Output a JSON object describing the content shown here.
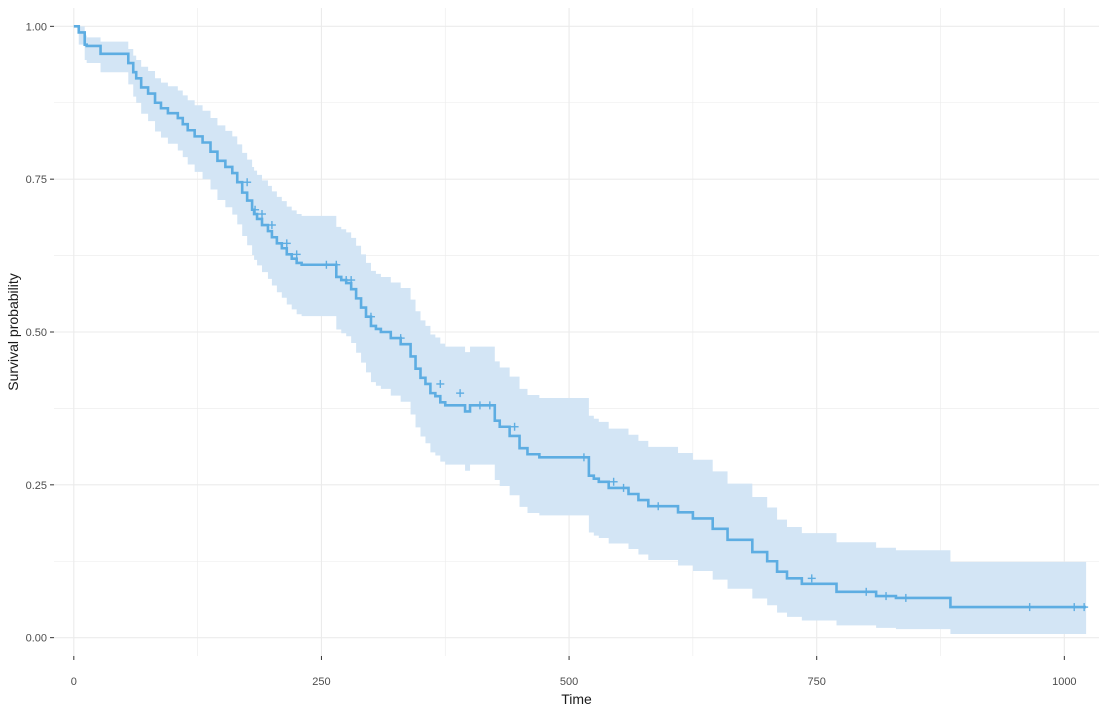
{
  "chart_data": {
    "type": "line",
    "subtype": "kaplan-meier survival curve",
    "title": "",
    "xlabel": "Time",
    "ylabel": "Survival probability",
    "xlim": [
      -20,
      1035
    ],
    "ylim": [
      -0.03,
      1.03
    ],
    "x_ticks": [
      0,
      250,
      500,
      750,
      1000
    ],
    "x_tick_labels": [
      "0",
      "250",
      "500",
      "750",
      "1000"
    ],
    "y_ticks": [
      0,
      0.25,
      0.5,
      0.75,
      1
    ],
    "y_tick_labels": [
      "0.00",
      "0.25",
      "0.50",
      "0.75",
      "1.00"
    ],
    "grid": true,
    "legend": "none",
    "colors": {
      "line": "#5dade2",
      "band": "#d3e5f5",
      "grid": "#ebebeb",
      "background": "#ffffff"
    },
    "series": [
      {
        "x": [
          0,
          5,
          11,
          13,
          27,
          55,
          60,
          63,
          68,
          75,
          82,
          88,
          95,
          105,
          110,
          115,
          122,
          130,
          138,
          145,
          153,
          160,
          165,
          170,
          175,
          180,
          182,
          185,
          190,
          196,
          200,
          205,
          210,
          215,
          220,
          225,
          230,
          235,
          240,
          245,
          252,
          265,
          270,
          275,
          280,
          285,
          290,
          295,
          300,
          305,
          310,
          320,
          330,
          340,
          345,
          350,
          355,
          360,
          365,
          370,
          375,
          395,
          400,
          425,
          430,
          440,
          450,
          458,
          470,
          520,
          525,
          530,
          540,
          560,
          570,
          580,
          610,
          625,
          645,
          660,
          685,
          700,
          710,
          720,
          735,
          770,
          810,
          830,
          885,
          1022
        ],
        "survival": [
          1.0,
          0.99,
          0.97,
          0.968,
          0.955,
          0.94,
          0.925,
          0.915,
          0.9,
          0.89,
          0.875,
          0.866,
          0.858,
          0.85,
          0.84,
          0.83,
          0.82,
          0.81,
          0.795,
          0.78,
          0.77,
          0.76,
          0.745,
          0.728,
          0.715,
          0.7,
          0.693,
          0.685,
          0.675,
          0.665,
          0.655,
          0.645,
          0.637,
          0.627,
          0.62,
          0.613,
          0.61,
          0.61,
          0.61,
          0.61,
          0.61,
          0.59,
          0.585,
          0.58,
          0.57,
          0.555,
          0.54,
          0.525,
          0.51,
          0.505,
          0.5,
          0.49,
          0.48,
          0.46,
          0.44,
          0.425,
          0.415,
          0.4,
          0.395,
          0.385,
          0.38,
          0.37,
          0.38,
          0.355,
          0.345,
          0.33,
          0.31,
          0.3,
          0.295,
          0.265,
          0.26,
          0.255,
          0.245,
          0.235,
          0.225,
          0.215,
          0.205,
          0.195,
          0.178,
          0.16,
          0.14,
          0.125,
          0.108,
          0.097,
          0.088,
          0.075,
          0.068,
          0.065,
          0.05,
          0.05
        ],
        "lower": [
          1.0,
          0.97,
          0.945,
          0.94,
          0.925,
          0.905,
          0.885,
          0.875,
          0.857,
          0.845,
          0.828,
          0.818,
          0.808,
          0.797,
          0.786,
          0.774,
          0.762,
          0.75,
          0.733,
          0.716,
          0.704,
          0.692,
          0.676,
          0.657,
          0.642,
          0.626,
          0.618,
          0.609,
          0.598,
          0.587,
          0.576,
          0.565,
          0.556,
          0.545,
          0.537,
          0.529,
          0.526,
          0.526,
          0.526,
          0.526,
          0.526,
          0.504,
          0.498,
          0.493,
          0.482,
          0.466,
          0.45,
          0.434,
          0.418,
          0.412,
          0.407,
          0.396,
          0.386,
          0.365,
          0.344,
          0.329,
          0.318,
          0.303,
          0.298,
          0.288,
          0.283,
          0.273,
          0.283,
          0.258,
          0.248,
          0.233,
          0.214,
          0.204,
          0.2,
          0.172,
          0.167,
          0.163,
          0.154,
          0.145,
          0.136,
          0.127,
          0.118,
          0.109,
          0.095,
          0.08,
          0.064,
          0.053,
          0.041,
          0.034,
          0.028,
          0.02,
          0.016,
          0.014,
          0.006,
          0.006
        ],
        "upper": [
          1.0,
          1.0,
          0.985,
          0.982,
          0.975,
          0.963,
          0.952,
          0.945,
          0.934,
          0.927,
          0.915,
          0.908,
          0.902,
          0.895,
          0.887,
          0.879,
          0.871,
          0.862,
          0.85,
          0.838,
          0.829,
          0.82,
          0.807,
          0.793,
          0.782,
          0.77,
          0.764,
          0.757,
          0.748,
          0.739,
          0.73,
          0.721,
          0.714,
          0.705,
          0.699,
          0.693,
          0.69,
          0.69,
          0.69,
          0.69,
          0.69,
          0.672,
          0.668,
          0.663,
          0.654,
          0.641,
          0.627,
          0.613,
          0.6,
          0.595,
          0.59,
          0.581,
          0.572,
          0.553,
          0.534,
          0.519,
          0.51,
          0.496,
          0.491,
          0.481,
          0.476,
          0.467,
          0.476,
          0.452,
          0.442,
          0.427,
          0.407,
          0.397,
          0.392,
          0.363,
          0.358,
          0.353,
          0.342,
          0.332,
          0.322,
          0.312,
          0.302,
          0.291,
          0.272,
          0.252,
          0.23,
          0.213,
          0.193,
          0.181,
          0.171,
          0.156,
          0.147,
          0.143,
          0.124,
          0.124
        ]
      }
    ],
    "censored": [
      {
        "x": 175,
        "y": 0.745
      },
      {
        "x": 183,
        "y": 0.7
      },
      {
        "x": 190,
        "y": 0.693
      },
      {
        "x": 200,
        "y": 0.675
      },
      {
        "x": 215,
        "y": 0.645
      },
      {
        "x": 225,
        "y": 0.627
      },
      {
        "x": 255,
        "y": 0.61
      },
      {
        "x": 265,
        "y": 0.61
      },
      {
        "x": 275,
        "y": 0.585
      },
      {
        "x": 280,
        "y": 0.585
      },
      {
        "x": 300,
        "y": 0.525
      },
      {
        "x": 330,
        "y": 0.49
      },
      {
        "x": 370,
        "y": 0.415
      },
      {
        "x": 390,
        "y": 0.4
      },
      {
        "x": 410,
        "y": 0.38
      },
      {
        "x": 420,
        "y": 0.38
      },
      {
        "x": 445,
        "y": 0.345
      },
      {
        "x": 515,
        "y": 0.295
      },
      {
        "x": 545,
        "y": 0.255
      },
      {
        "x": 555,
        "y": 0.245
      },
      {
        "x": 590,
        "y": 0.215
      },
      {
        "x": 745,
        "y": 0.097
      },
      {
        "x": 800,
        "y": 0.075
      },
      {
        "x": 820,
        "y": 0.068
      },
      {
        "x": 840,
        "y": 0.065
      },
      {
        "x": 965,
        "y": 0.05
      },
      {
        "x": 1010,
        "y": 0.05
      },
      {
        "x": 1020,
        "y": 0.05
      }
    ]
  }
}
